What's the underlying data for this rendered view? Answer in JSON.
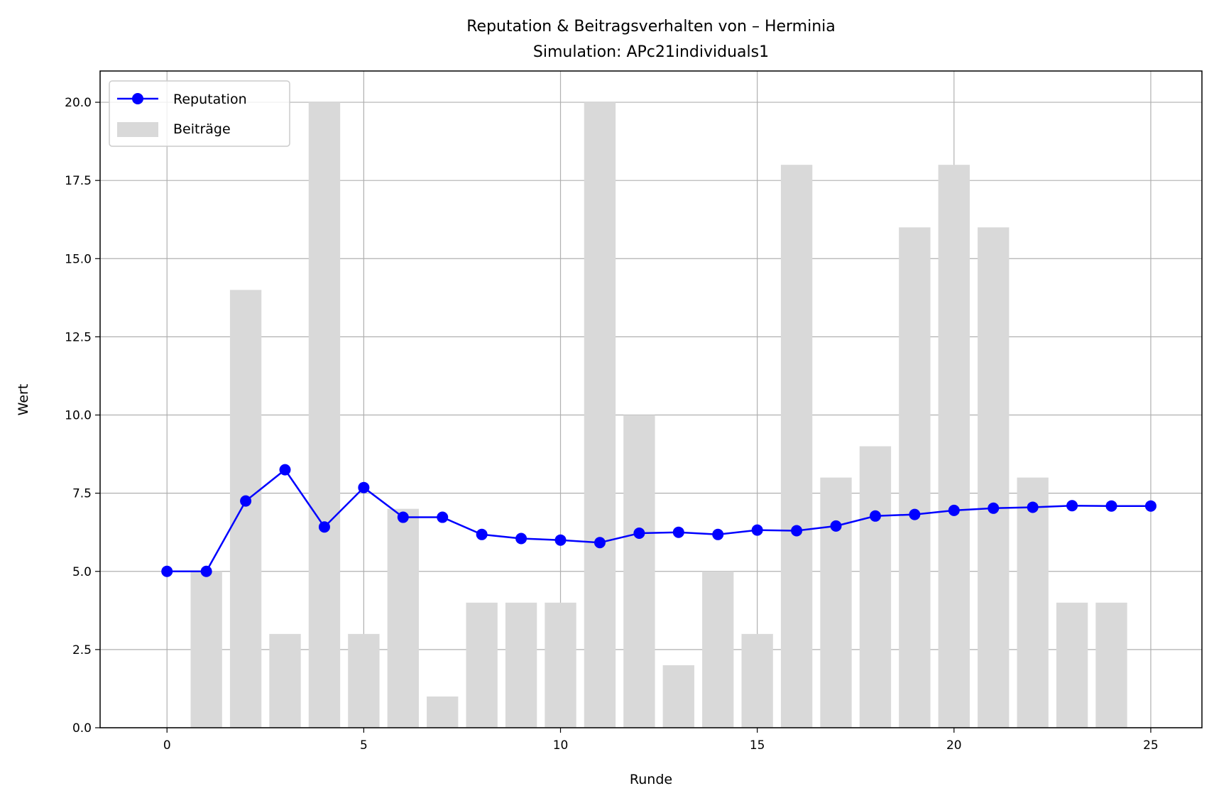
{
  "chart_data": {
    "type": "bar",
    "title": "Reputation & Beitragsverhalten von – Herminia",
    "subtitle": "Simulation: APc21individuals1",
    "xlabel": "Runde",
    "ylabel": "Wert",
    "xlim": [
      -1.7,
      26.3
    ],
    "ylim": [
      0,
      21
    ],
    "xticks": [
      0,
      5,
      10,
      15,
      20,
      25
    ],
    "xtick_labels": [
      "0",
      "5",
      "10",
      "15",
      "20",
      "25"
    ],
    "yticks": [
      0,
      2.5,
      5,
      7.5,
      10,
      12.5,
      15,
      17.5,
      20
    ],
    "ytick_labels": [
      "0.0",
      "2.5",
      "5.0",
      "7.5",
      "10.0",
      "12.5",
      "15.0",
      "17.5",
      "20.0"
    ],
    "grid": true,
    "legend_position": "upper-left",
    "series": [
      {
        "name": "Reputation",
        "type": "line",
        "color": "#0000ff",
        "marker": "circle",
        "x": [
          0,
          1,
          2,
          3,
          4,
          5,
          6,
          7,
          8,
          9,
          10,
          11,
          12,
          13,
          14,
          15,
          16,
          17,
          18,
          19,
          20,
          21,
          22,
          23,
          24,
          25
        ],
        "values": [
          5.0,
          5.0,
          7.25,
          8.25,
          6.42,
          7.68,
          6.73,
          6.73,
          6.18,
          6.05,
          6.0,
          5.92,
          6.22,
          6.25,
          6.18,
          6.32,
          6.3,
          6.45,
          6.77,
          6.82,
          6.95,
          7.02,
          7.05,
          7.1,
          7.09,
          7.09
        ]
      },
      {
        "name": "Beiträge",
        "type": "bar",
        "color": "#d9d9d9",
        "x": [
          1,
          2,
          3,
          4,
          5,
          6,
          7,
          8,
          9,
          10,
          11,
          12,
          13,
          14,
          15,
          16,
          17,
          18,
          19,
          20,
          21,
          22,
          23,
          24
        ],
        "values": [
          5,
          14,
          3,
          20,
          3,
          7,
          1,
          4,
          4,
          4,
          20,
          10,
          2,
          5,
          3,
          18,
          8,
          9,
          16,
          18,
          16,
          8,
          4,
          4
        ]
      }
    ]
  }
}
